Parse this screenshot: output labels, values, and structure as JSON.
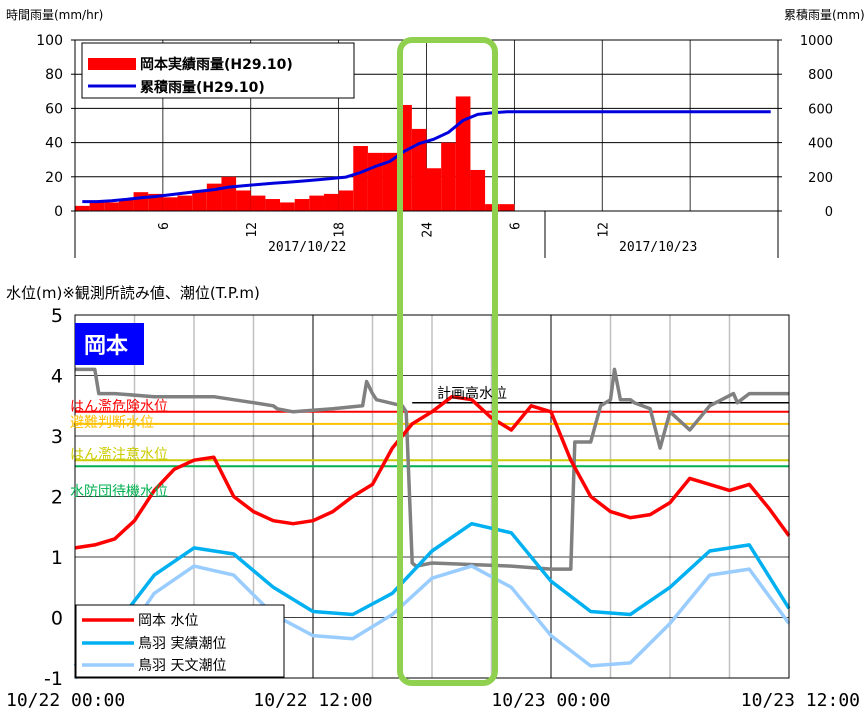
{
  "chart_data": [
    {
      "type": "bar",
      "ylabel": "時間雨量(mm/hr)",
      "y2label": "累積雨量(mm)",
      "ylim": [
        0,
        100
      ],
      "y2lim": [
        0,
        1000
      ],
      "yticks": [
        "100",
        "80",
        "60",
        "40",
        "20",
        "0"
      ],
      "y2ticks": [
        "1000",
        "800",
        "600",
        "400",
        "200",
        "0"
      ],
      "xticks": [
        "6",
        "12",
        "18",
        "24",
        "6",
        "12"
      ],
      "date_labels": [
        "2017/10/22",
        "2017/10/23"
      ],
      "legend": [
        "岡本実績雨量(H29.10)",
        "累積雨量(H29.10)"
      ],
      "hourly_rain": [
        3,
        5,
        5,
        7,
        11,
        10,
        8,
        9,
        12,
        16,
        20,
        12,
        9,
        7,
        5,
        7,
        9,
        10,
        12,
        38,
        34,
        34,
        62,
        48,
        25,
        40,
        67,
        24,
        4,
        4,
        0,
        0,
        0,
        0,
        0,
        0,
        0,
        0,
        0,
        0,
        0,
        0,
        0,
        0,
        0,
        0,
        0,
        0
      ],
      "cumulative_rain": [
        55,
        55,
        60,
        68,
        78,
        85,
        95,
        105,
        115,
        125,
        140,
        148,
        155,
        162,
        168,
        175,
        182,
        190,
        198,
        225,
        260,
        290,
        350,
        395,
        420,
        460,
        530,
        565,
        575,
        580,
        580,
        580,
        580,
        580,
        580,
        580,
        580,
        580,
        580,
        580,
        580,
        580,
        580,
        580,
        580,
        580,
        580,
        580
      ],
      "colors": {
        "bar": "#ff0000",
        "line": "#0000dd"
      }
    },
    {
      "type": "line",
      "ylabel": "水位(m)※観測所読み値、潮位(T.P.m)",
      "ylim": [
        -1,
        5
      ],
      "yticks": [
        "5",
        "4",
        "3",
        "2",
        "1",
        "0",
        "-1"
      ],
      "xticks": [
        "10/22 00:00",
        "10/22 12:00",
        "10/23 00:00",
        "10/23 12:00"
      ],
      "station_label": "岡本",
      "thresholds": [
        {
          "label": "計画高水位",
          "value": 3.55,
          "color": "#000000"
        },
        {
          "label": "はん濫危険水位",
          "value": 3.4,
          "color": "#ff0000"
        },
        {
          "label": "避難判断水位",
          "value": 3.2,
          "color": "#ffc000"
        },
        {
          "label": "はん濫注意水位",
          "value": 2.6,
          "color": "#cccc00"
        },
        {
          "label": "水防団待機水位",
          "value": 2.5,
          "color": "#00b050"
        }
      ],
      "legend": [
        "岡本 水位",
        "鳥羽 実績潮位",
        "鳥羽 天文潮位"
      ],
      "series": [
        {
          "name": "岡本 水位",
          "color": "#ff0000",
          "x": [
            0,
            1,
            2,
            3,
            4,
            5,
            6,
            7,
            8,
            9,
            10,
            11,
            12,
            13,
            14,
            15,
            16,
            17,
            18,
            19,
            20,
            21,
            22,
            23,
            24,
            25,
            26,
            27,
            28,
            29,
            30,
            31,
            32,
            33,
            34,
            35,
            36
          ],
          "y": [
            1.15,
            1.2,
            1.3,
            1.6,
            2.1,
            2.45,
            2.6,
            2.65,
            2.0,
            1.75,
            1.6,
            1.55,
            1.6,
            1.75,
            2.0,
            2.2,
            2.8,
            3.2,
            3.4,
            3.65,
            3.6,
            3.3,
            3.1,
            3.5,
            3.4,
            2.6,
            2.0,
            1.75,
            1.65,
            1.7,
            1.9,
            2.3,
            2.2,
            2.1,
            2.2,
            1.8,
            1.35
          ]
        },
        {
          "name": "鳥羽 実績潮位",
          "color": "#00b0f0",
          "x": [
            0,
            2,
            4,
            6,
            8,
            10,
            12,
            14,
            16,
            18,
            20,
            22,
            24,
            26,
            28,
            30,
            32,
            34,
            36
          ],
          "y": [
            -0.8,
            -0.15,
            0.7,
            1.15,
            1.05,
            0.5,
            0.1,
            0.05,
            0.4,
            1.1,
            1.55,
            1.4,
            0.6,
            0.1,
            0.05,
            0.5,
            1.1,
            1.2,
            0.15
          ]
        },
        {
          "name": "鳥羽 天文潮位",
          "color": "#99ccff",
          "x": [
            0,
            2,
            4,
            6,
            8,
            10,
            12,
            14,
            16,
            18,
            20,
            22,
            24,
            26,
            28,
            30,
            32,
            34,
            36
          ],
          "y": [
            -1.0,
            -0.55,
            0.4,
            0.85,
            0.7,
            0.05,
            -0.3,
            -0.35,
            0.05,
            0.65,
            0.85,
            0.5,
            -0.3,
            -0.8,
            -0.75,
            -0.1,
            0.7,
            0.8,
            -0.1
          ]
        },
        {
          "name": "gray",
          "color": "#808080",
          "x": [
            0,
            1,
            1.2,
            2,
            4,
            7,
            9,
            10,
            10.2,
            11,
            13,
            14.5,
            14.7,
            15,
            15.2,
            16.5,
            16.7,
            17,
            17.2,
            18,
            22,
            24,
            25,
            25.2,
            26,
            26.5,
            27,
            27.2,
            27.5,
            28,
            28.2,
            29,
            29.5,
            30,
            31,
            32,
            33.2,
            33.4,
            34,
            36
          ],
          "y": [
            4.1,
            4.1,
            3.7,
            3.7,
            3.65,
            3.65,
            3.55,
            3.5,
            3.45,
            3.4,
            3.45,
            3.5,
            3.9,
            3.7,
            3.6,
            3.5,
            3.4,
            0.9,
            0.85,
            0.9,
            0.85,
            0.8,
            0.8,
            2.9,
            2.9,
            3.5,
            3.6,
            4.1,
            3.6,
            3.6,
            3.55,
            3.45,
            2.8,
            3.4,
            3.1,
            3.5,
            3.7,
            3.55,
            3.7,
            3.7
          ]
        }
      ]
    }
  ]
}
